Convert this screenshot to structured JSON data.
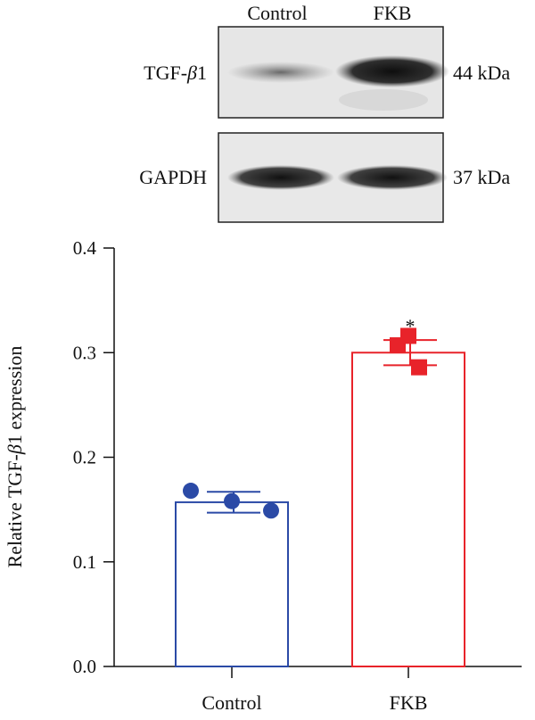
{
  "blot": {
    "lanes": [
      "Control",
      "FKB"
    ],
    "rows": [
      {
        "protein": "TGF-β",
        "suffix": "1",
        "size": "44 kDa"
      },
      {
        "protein": "GAPDH",
        "suffix": "",
        "size": "37 kDa"
      }
    ]
  },
  "chart_data": {
    "type": "bar",
    "categories": [
      "Control",
      "FKB"
    ],
    "values": [
      0.157,
      0.3
    ],
    "errors": [
      0.01,
      0.012
    ],
    "points": [
      [
        0.168,
        0.158,
        0.149
      ],
      [
        0.307,
        0.316,
        0.286
      ]
    ],
    "significance": [
      "",
      "*"
    ],
    "ylabel_prefix": "Relative TGF-β",
    "ylabel_suffix": "1 expression",
    "ylim": [
      0.0,
      0.4
    ],
    "yticks": [
      "0.0",
      "0.1",
      "0.2",
      "0.3",
      "0.4"
    ],
    "colors": [
      "#2b4aa6",
      "#e8232a"
    ],
    "markers": [
      "circle",
      "square"
    ]
  }
}
